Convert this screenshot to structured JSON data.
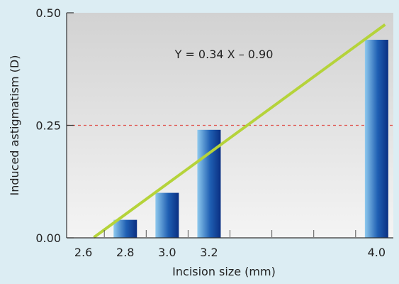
{
  "chart_data": {
    "type": "bar",
    "title": "",
    "xlabel": "Incision size (mm)",
    "ylabel": "Induced astigmatism (D)",
    "x_ticks": [
      "2.6",
      "2.8",
      "3.0",
      "3.2",
      "4.0"
    ],
    "x_tick_values": [
      2.6,
      2.8,
      3.0,
      3.2,
      4.0
    ],
    "x_minor_ticks": [
      2.7,
      2.9,
      3.1,
      3.3,
      3.5,
      3.7,
      3.9
    ],
    "xlim": [
      2.52,
      4.08
    ],
    "y_ticks": [
      "0.00",
      "0.25",
      "0.50"
    ],
    "y_tick_values": [
      0.0,
      0.25,
      0.5
    ],
    "ylim": [
      0,
      0.5
    ],
    "bars": [
      {
        "x": 2.8,
        "value": 0.04
      },
      {
        "x": 3.0,
        "value": 0.1
      },
      {
        "x": 3.2,
        "value": 0.24
      },
      {
        "x": 4.0,
        "value": 0.44
      }
    ],
    "regression": {
      "slope": 0.34,
      "intercept": -0.9,
      "x_range": [
        2.65,
        4.0
      ],
      "label": "Y = 0.34 X – 0.90",
      "color": "#b5d33a"
    },
    "reference_line": {
      "y": 0.25,
      "style": "dashed",
      "color": "#e0504a"
    },
    "bar_gradient": [
      "#8ec9ee",
      "#1f5fb3",
      "#0a2f82"
    ],
    "plot_background": [
      "#d2d2d2",
      "#f4f4f4"
    ],
    "page_background": "#dcedf3",
    "grid": false,
    "legend": "none"
  }
}
